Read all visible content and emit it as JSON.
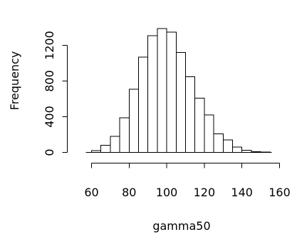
{
  "chart_data": {
    "type": "bar",
    "subtype": "histogram",
    "title": "",
    "xlabel": "gamma50",
    "ylabel": "Frequency",
    "xlim": [
      60,
      160
    ],
    "ylim": [
      0,
      1400
    ],
    "x_ticks": [
      "60",
      "80",
      "100",
      "120",
      "140",
      "160"
    ],
    "y_ticks": [
      "0",
      "400",
      "800",
      "1200"
    ],
    "grid": false,
    "bin_width": 5,
    "bins": [
      {
        "start": 60,
        "end": 65,
        "value": 20
      },
      {
        "start": 65,
        "end": 70,
        "value": 80
      },
      {
        "start": 70,
        "end": 75,
        "value": 180
      },
      {
        "start": 75,
        "end": 80,
        "value": 390
      },
      {
        "start": 80,
        "end": 85,
        "value": 710
      },
      {
        "start": 85,
        "end": 90,
        "value": 1070
      },
      {
        "start": 90,
        "end": 95,
        "value": 1310
      },
      {
        "start": 95,
        "end": 100,
        "value": 1390
      },
      {
        "start": 100,
        "end": 105,
        "value": 1350
      },
      {
        "start": 105,
        "end": 110,
        "value": 1120
      },
      {
        "start": 110,
        "end": 115,
        "value": 850
      },
      {
        "start": 115,
        "end": 120,
        "value": 610
      },
      {
        "start": 120,
        "end": 125,
        "value": 420
      },
      {
        "start": 125,
        "end": 130,
        "value": 210
      },
      {
        "start": 130,
        "end": 135,
        "value": 140
      },
      {
        "start": 135,
        "end": 140,
        "value": 60
      },
      {
        "start": 140,
        "end": 145,
        "value": 25
      },
      {
        "start": 145,
        "end": 150,
        "value": 10
      },
      {
        "start": 150,
        "end": 155,
        "value": 3
      }
    ]
  }
}
